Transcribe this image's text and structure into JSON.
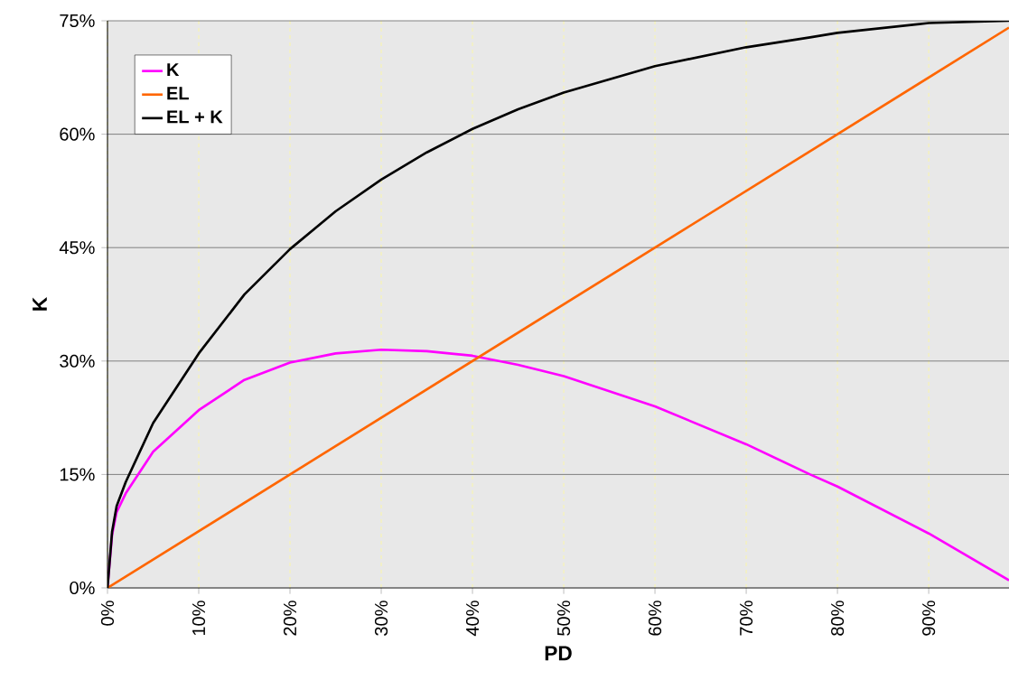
{
  "chart_data": {
    "type": "line",
    "xlabel": "PD",
    "ylabel": "K",
    "xlim": [
      0,
      98.8
    ],
    "ylim": [
      0,
      75
    ],
    "xticks": [
      {
        "value": 0,
        "label": "0%"
      },
      {
        "value": 10,
        "label": "10%"
      },
      {
        "value": 20,
        "label": "20%"
      },
      {
        "value": 30,
        "label": "30%"
      },
      {
        "value": 40,
        "label": "40%"
      },
      {
        "value": 50,
        "label": "50%"
      },
      {
        "value": 60,
        "label": "60%"
      },
      {
        "value": 70,
        "label": "70%"
      },
      {
        "value": 80,
        "label": "80%"
      },
      {
        "value": 90,
        "label": "90%"
      }
    ],
    "yticks": [
      {
        "value": 0,
        "label": "0%"
      },
      {
        "value": 15,
        "label": "15%"
      },
      {
        "value": 30,
        "label": "30%"
      },
      {
        "value": 45,
        "label": "45%"
      },
      {
        "value": 60,
        "label": "60%"
      },
      {
        "value": 75,
        "label": "75%"
      }
    ],
    "grid": true,
    "legend": "top left",
    "marker": "none",
    "line_style": "solid",
    "series": [
      {
        "name": "K",
        "color": "#ff00ff",
        "x": [
          0,
          0.5,
          1,
          2,
          5,
          10,
          15,
          20,
          25,
          30,
          35,
          40,
          45,
          50,
          60,
          70,
          77,
          80,
          90,
          98.8
        ],
        "values": [
          0,
          7,
          10,
          12.5,
          18,
          23.5,
          27.5,
          29.8,
          31,
          31.5,
          31.3,
          30.7,
          29.5,
          28,
          24,
          19,
          15,
          13.4,
          7.2,
          1
        ]
      },
      {
        "name": "EL",
        "color": "#ff6600",
        "x": [
          0,
          98.8
        ],
        "values": [
          0,
          74.1
        ]
      },
      {
        "name": "EL + K",
        "color": "#000000",
        "x": [
          0,
          0.5,
          1,
          2,
          5,
          10,
          15,
          20,
          25,
          30,
          35,
          40,
          45,
          50,
          60,
          70,
          77,
          80,
          90,
          98.8
        ],
        "values": [
          0,
          7.4,
          10.8,
          14,
          21.8,
          31,
          38.8,
          44.8,
          49.8,
          54,
          57.6,
          60.7,
          63.3,
          65.5,
          69,
          71.5,
          72.8,
          73.4,
          74.7,
          75
        ]
      }
    ]
  }
}
